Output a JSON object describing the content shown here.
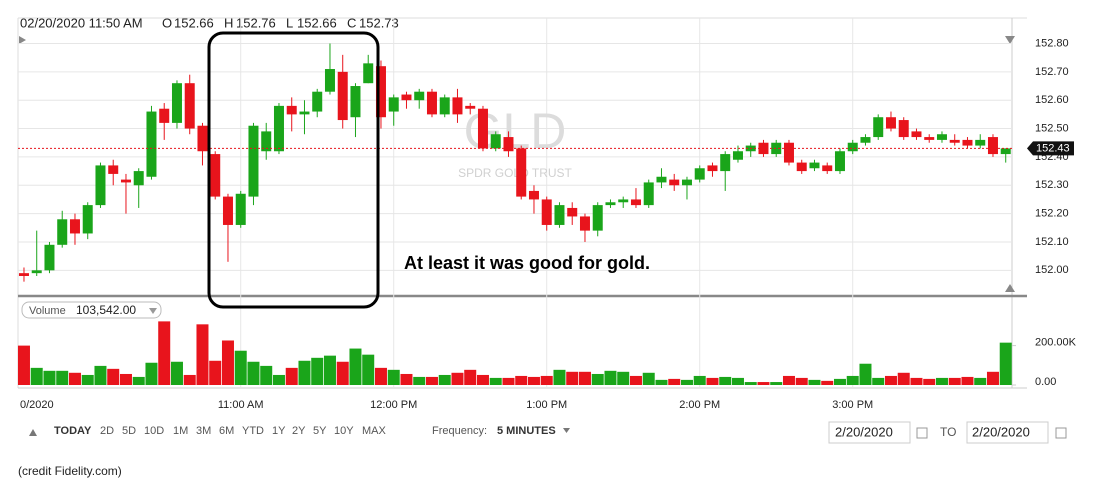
{
  "header": {
    "datetime": "02/20/2020 11:50 AM",
    "o_label": "O",
    "open": "152.66",
    "h_label": "H",
    "high": "152.76",
    "l_label": "L",
    "low": "152.66",
    "c_label": "C",
    "close": "152.73"
  },
  "chart_data": {
    "type": "candlestick",
    "watermark": "GLD",
    "watermark_subtitle": "SPDR GOLD TRUST",
    "annotation": "At least it was good for gold.",
    "categories": [
      "0/2020",
      null,
      null,
      null,
      null,
      null,
      null,
      null,
      null,
      null,
      null,
      null,
      null,
      null,
      null,
      null,
      null,
      "11:00 AM",
      null,
      null,
      null,
      null,
      null,
      null,
      null,
      null,
      null,
      null,
      null,
      "12:00 PM",
      null,
      null,
      null,
      null,
      null,
      null,
      null,
      null,
      null,
      null,
      null,
      "1:00 PM",
      null,
      null,
      null,
      null,
      null,
      null,
      null,
      null,
      null,
      null,
      null,
      "2:00 PM",
      null,
      null,
      null,
      null,
      null,
      null,
      null,
      null,
      null,
      null,
      null,
      "3:00 PM",
      null,
      null,
      null,
      null,
      null,
      null,
      null,
      null,
      null,
      null,
      null,
      null
    ],
    "open": [
      151.99,
      151.99,
      152.0,
      152.09,
      152.18,
      152.13,
      152.23,
      152.37,
      152.32,
      152.3,
      152.33,
      152.57,
      152.52,
      152.66,
      152.51,
      152.41,
      152.26,
      152.16,
      152.26,
      152.42,
      152.42,
      152.58,
      152.55,
      152.56,
      152.63,
      152.7,
      152.54,
      152.66,
      152.72,
      152.56,
      152.62,
      152.6,
      152.63,
      152.55,
      152.61,
      152.58,
      152.57,
      152.43,
      152.47,
      152.43,
      152.28,
      152.25,
      152.16,
      152.22,
      152.19,
      152.14,
      152.23,
      152.24,
      152.25,
      152.23,
      152.31,
      152.32,
      152.3,
      152.32,
      152.37,
      152.35,
      152.39,
      152.42,
      152.45,
      152.41,
      152.45,
      152.38,
      152.36,
      152.37,
      152.35,
      152.42,
      152.45,
      152.47,
      152.54,
      152.53,
      152.49,
      152.47,
      152.46,
      152.46,
      152.46,
      152.44,
      152.47,
      152.41
    ],
    "high": [
      152.01,
      152.14,
      152.1,
      152.21,
      152.2,
      152.24,
      152.38,
      152.39,
      152.34,
      152.36,
      152.58,
      152.59,
      152.67,
      152.69,
      152.52,
      152.42,
      152.27,
      152.28,
      152.52,
      152.52,
      152.59,
      152.61,
      152.6,
      152.64,
      152.8,
      152.76,
      152.66,
      152.76,
      152.74,
      152.62,
      152.63,
      152.64,
      152.64,
      152.62,
      152.64,
      152.59,
      152.58,
      152.49,
      152.49,
      152.44,
      152.3,
      152.26,
      152.24,
      152.24,
      152.2,
      152.24,
      152.25,
      152.26,
      152.29,
      152.32,
      152.36,
      152.34,
      152.33,
      152.37,
      152.38,
      152.42,
      152.44,
      152.45,
      152.46,
      152.46,
      152.46,
      152.39,
      152.39,
      152.38,
      152.43,
      152.46,
      152.48,
      152.55,
      152.56,
      152.54,
      152.5,
      152.48,
      152.49,
      152.48,
      152.47,
      152.48,
      152.48,
      152.43
    ],
    "low": [
      151.96,
      151.98,
      151.99,
      152.08,
      152.09,
      152.11,
      152.22,
      152.3,
      152.2,
      152.22,
      152.32,
      152.46,
      152.5,
      152.48,
      152.37,
      152.25,
      152.03,
      152.15,
      152.23,
      152.39,
      152.41,
      152.49,
      152.48,
      152.54,
      152.62,
      152.5,
      152.47,
      152.66,
      152.5,
      152.51,
      152.57,
      152.57,
      152.54,
      152.54,
      152.52,
      152.55,
      152.42,
      152.42,
      152.4,
      152.25,
      152.2,
      152.14,
      152.15,
      152.16,
      152.1,
      152.12,
      152.22,
      152.22,
      152.22,
      152.22,
      152.29,
      152.28,
      152.25,
      152.31,
      152.33,
      152.28,
      152.38,
      152.4,
      152.4,
      152.4,
      152.37,
      152.34,
      152.35,
      152.34,
      152.34,
      152.41,
      152.44,
      152.46,
      152.49,
      152.46,
      152.46,
      152.45,
      152.45,
      152.44,
      152.43,
      152.43,
      152.4,
      152.38
    ],
    "close": [
      151.98,
      152.0,
      152.09,
      152.18,
      152.13,
      152.23,
      152.37,
      152.34,
      152.31,
      152.35,
      152.56,
      152.52,
      152.66,
      152.5,
      152.42,
      152.26,
      152.16,
      152.27,
      152.51,
      152.49,
      152.58,
      152.55,
      152.56,
      152.63,
      152.71,
      152.53,
      152.65,
      152.73,
      152.54,
      152.61,
      152.6,
      152.63,
      152.55,
      152.61,
      152.55,
      152.57,
      152.43,
      152.48,
      152.42,
      152.26,
      152.25,
      152.16,
      152.23,
      152.19,
      152.14,
      152.23,
      152.24,
      152.25,
      152.23,
      152.31,
      152.33,
      152.3,
      152.32,
      152.36,
      152.35,
      152.41,
      152.42,
      152.44,
      152.41,
      152.45,
      152.38,
      152.35,
      152.38,
      152.35,
      152.42,
      152.45,
      152.47,
      152.54,
      152.5,
      152.47,
      152.47,
      152.46,
      152.48,
      152.45,
      152.44,
      152.46,
      152.41,
      152.43
    ],
    "volume": [
      200000,
      87000,
      72000,
      72000,
      62000,
      51000,
      97000,
      82000,
      56000,
      41000,
      113000,
      323000,
      118000,
      51000,
      308000,
      123000,
      226000,
      174000,
      118000,
      97000,
      51000,
      87000,
      123000,
      138000,
      149000,
      118000,
      185000,
      154000,
      87000,
      77000,
      56000,
      41000,
      41000,
      51000,
      62000,
      77000,
      51000,
      36000,
      36000,
      46000,
      41000,
      46000,
      77000,
      67000,
      67000,
      56000,
      72000,
      67000,
      46000,
      62000,
      26000,
      31000,
      26000,
      46000,
      36000,
      41000,
      36000,
      15000,
      15000,
      15000,
      46000,
      36000,
      26000,
      21000,
      31000,
      46000,
      108000,
      36000,
      46000,
      62000,
      36000,
      31000,
      36000,
      36000,
      41000,
      36000,
      67000,
      215000
    ],
    "up_color": "#1aa51a",
    "down_color": "#e8141c",
    "ylim": [
      151.92,
      152.83
    ],
    "yticks": [
      {
        "value": 152.0,
        "label": "152.00"
      },
      {
        "value": 152.1,
        "label": "152.10"
      },
      {
        "value": 152.2,
        "label": "152.20"
      },
      {
        "value": 152.3,
        "label": "152.30"
      },
      {
        "value": 152.4,
        "label": "152.40"
      },
      {
        "value": 152.5,
        "label": "152.50"
      },
      {
        "value": 152.6,
        "label": "152.60"
      },
      {
        "value": 152.7,
        "label": "152.70"
      },
      {
        "value": 152.8,
        "label": "152.80"
      }
    ],
    "last_price": {
      "value": 152.43,
      "label": "152.43"
    },
    "volume_label": "Volume",
    "volume_value": "103,542.00",
    "vlim": [
      0,
      330000
    ],
    "vticks": [
      {
        "value": 200000,
        "label": "200.00K"
      },
      {
        "value": 0,
        "label": "0.00"
      }
    ],
    "grid": true
  },
  "toolbar": {
    "ranges": [
      "TODAY",
      "2D",
      "5D",
      "10D",
      "1M",
      "3M",
      "6M",
      "YTD",
      "1Y",
      "2Y",
      "5Y",
      "10Y",
      "MAX"
    ],
    "frequency_label": "Frequency:",
    "frequency": "5 MINUTES",
    "from": "2/20/2020",
    "to_label": "TO",
    "to": "2/20/2020"
  },
  "credit": "(credit Fidelity.com)"
}
